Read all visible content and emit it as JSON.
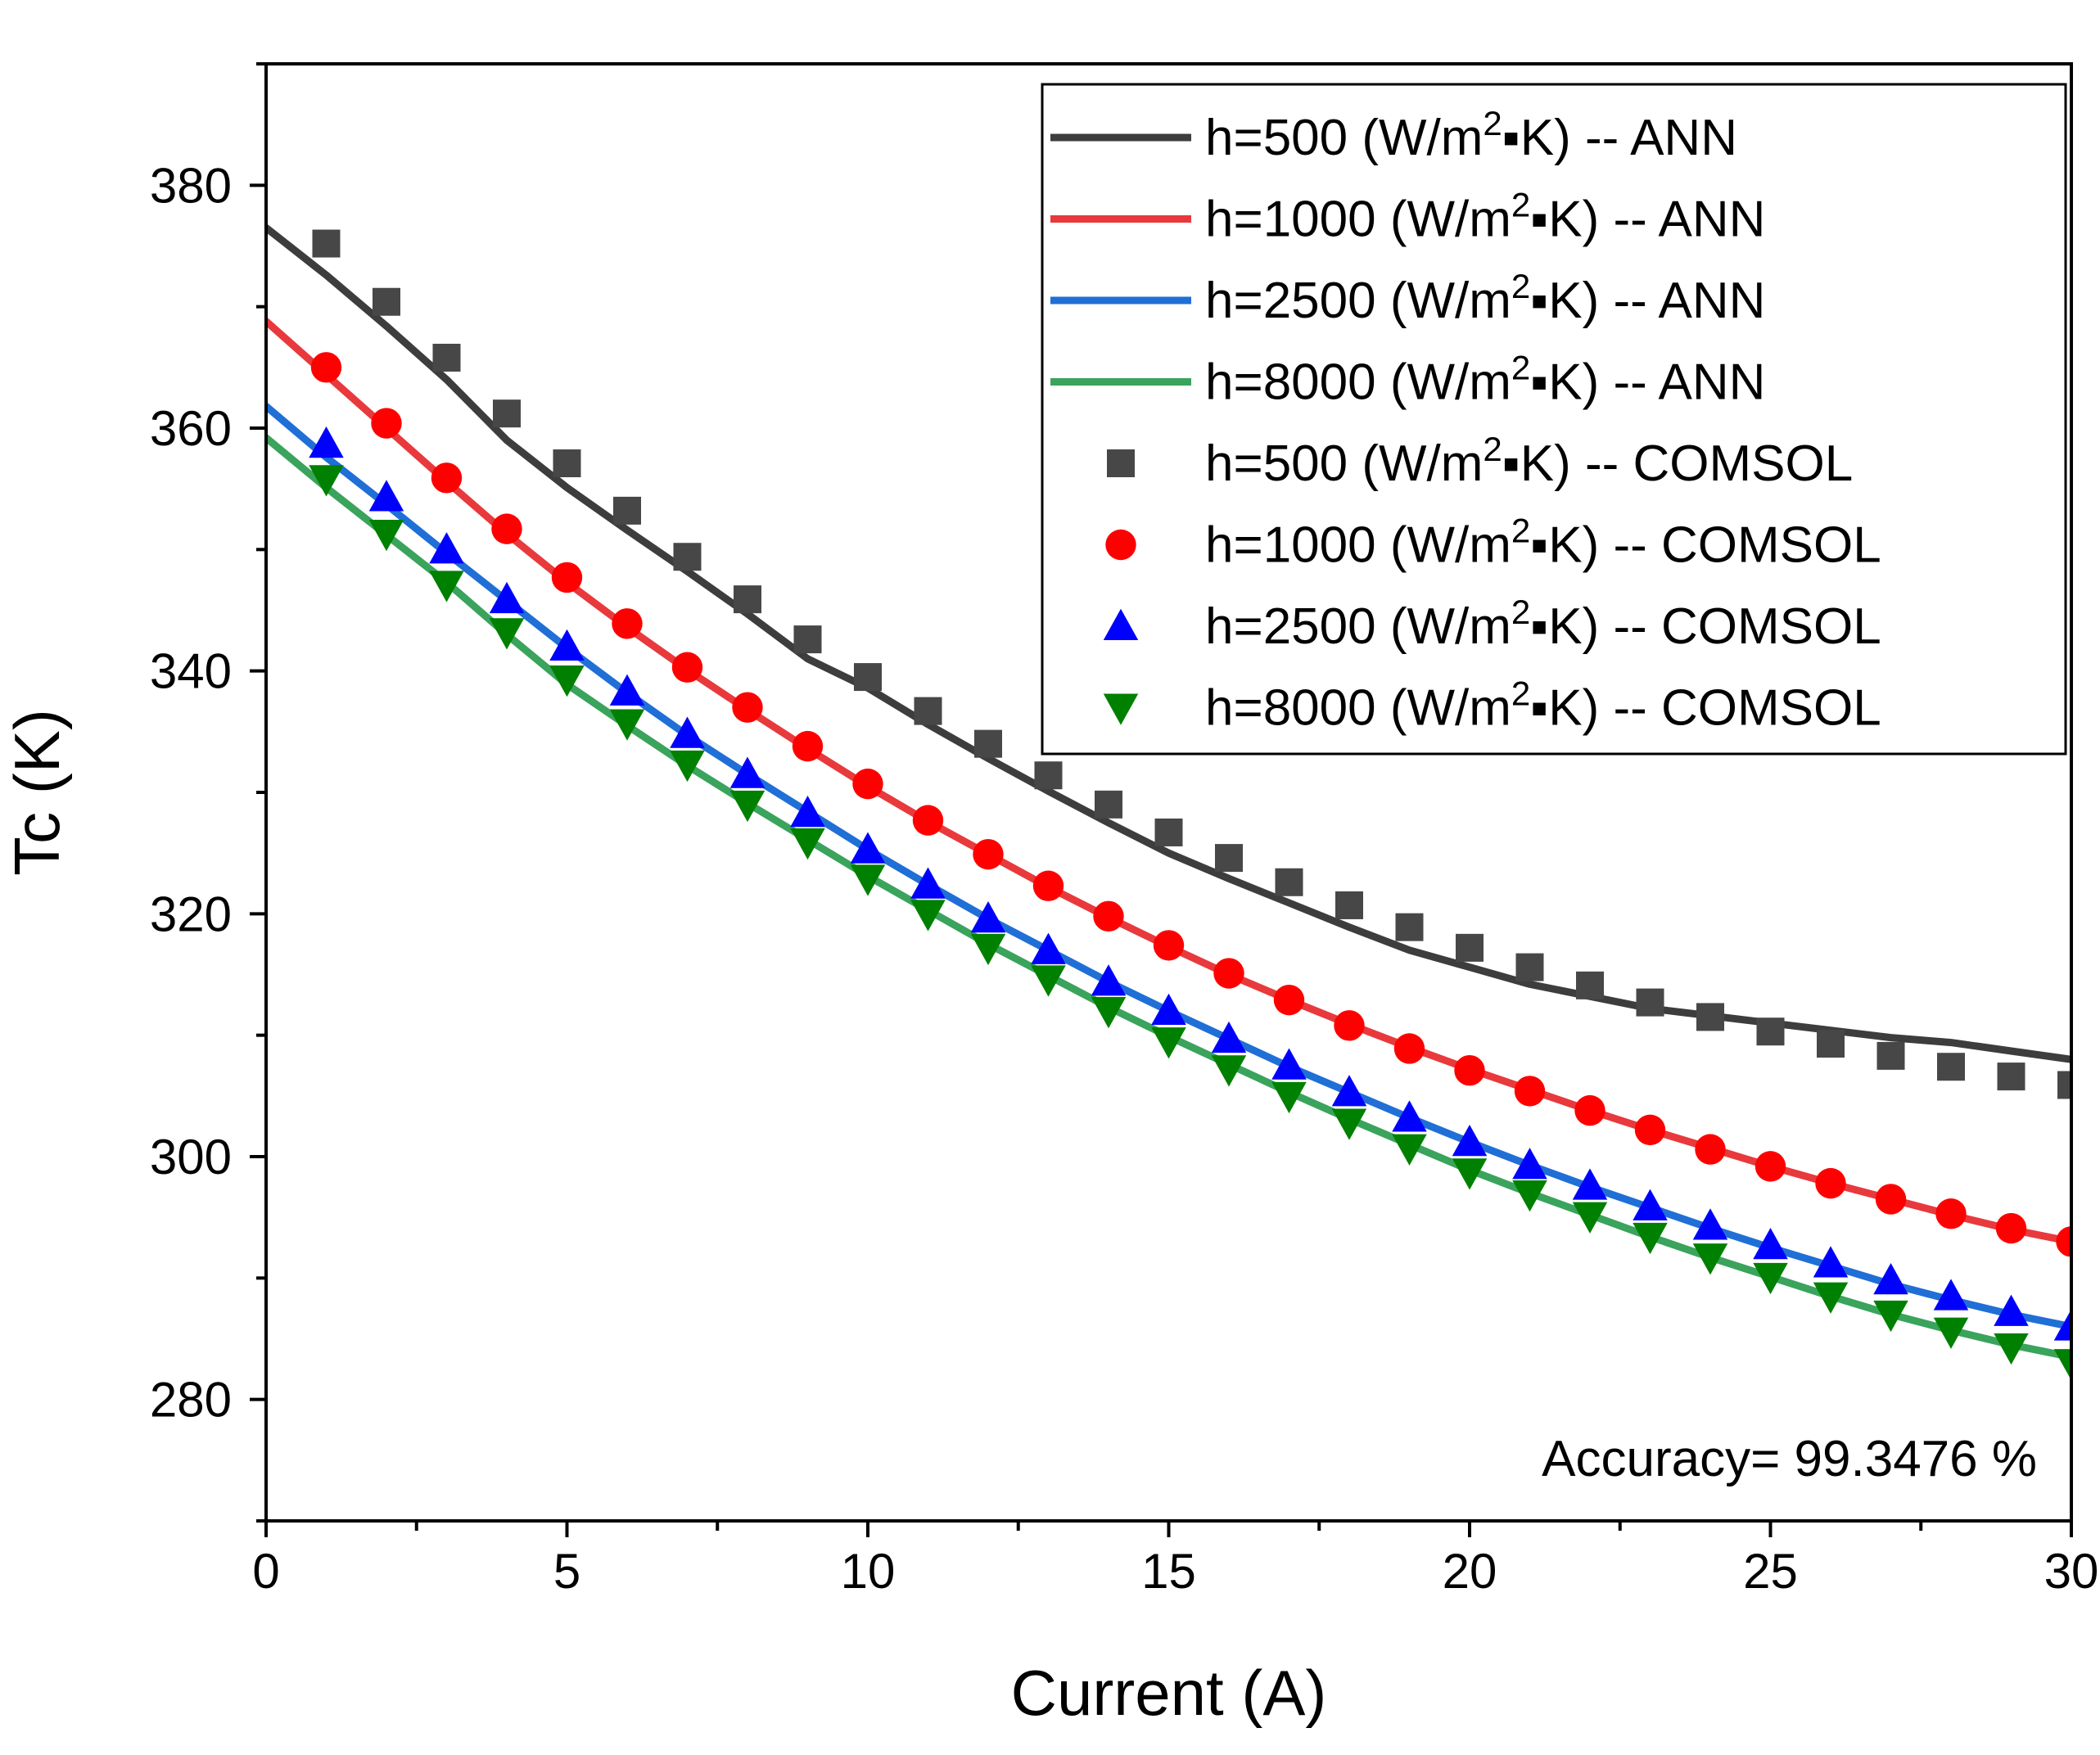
{
  "chart_data": {
    "type": "line",
    "xlabel": "Current (A)",
    "ylabel": "Tc (K)",
    "xlim": [
      0,
      30
    ],
    "ylim": [
      270,
      390
    ],
    "x_ticks": [
      0,
      5,
      10,
      15,
      20,
      25,
      30
    ],
    "y_ticks": [
      280,
      300,
      320,
      340,
      360,
      380
    ],
    "x_minor_step": 2.5,
    "y_minor_step": 10,
    "grid": false,
    "legend_position": "top-right",
    "annotation": "Accuracy= 99.3476 %",
    "ann_series": [
      {
        "name": "h=500 (W/m",
        "name_tail": "▪K) -- ANN",
        "superscript": "2",
        "color": "#3d3d3d",
        "x": [
          0,
          1,
          2,
          3,
          4,
          5,
          6,
          7,
          8,
          9,
          10,
          11,
          12,
          13,
          14,
          15,
          16,
          17,
          18,
          19,
          20,
          21,
          22,
          23,
          24,
          25,
          26,
          27,
          28,
          29,
          30
        ],
        "y": [
          376.5,
          372.6,
          368.4,
          364.0,
          359.0,
          355.1,
          351.6,
          348.2,
          344.7,
          341.0,
          338.6,
          335.6,
          332.8,
          330.1,
          327.5,
          325.0,
          322.9,
          320.9,
          318.9,
          317.0,
          315.6,
          314.2,
          313.2,
          312.2,
          311.6,
          311.0,
          310.4,
          309.8,
          309.4,
          308.7,
          308.0
        ]
      },
      {
        "name": "h=1000 (W/m",
        "name_tail": "▪K) -- ANN",
        "superscript": "2",
        "color": "#e8393c",
        "x": [
          0,
          1,
          2,
          3,
          4,
          5,
          6,
          7,
          8,
          9,
          10,
          11,
          12,
          13,
          14,
          15,
          16,
          17,
          18,
          19,
          20,
          21,
          22,
          23,
          24,
          25,
          26,
          27,
          28,
          29,
          30
        ],
        "y": [
          368.8,
          364.4,
          360.0,
          355.6,
          351.3,
          347.3,
          343.6,
          340.1,
          336.8,
          333.6,
          330.5,
          327.6,
          324.9,
          322.2,
          319.7,
          317.3,
          315.0,
          312.9,
          310.9,
          309.0,
          307.2,
          305.5,
          303.8,
          302.2,
          300.7,
          299.2,
          297.8,
          296.5,
          295.2,
          294.0,
          293.0
        ]
      },
      {
        "name": "h=2500 (W/m",
        "name_tail": "▪K) -- ANN",
        "superscript": "2",
        "color": "#1f6fd6",
        "x": [
          0,
          1,
          2,
          3,
          4,
          5,
          6,
          7,
          8,
          9,
          10,
          11,
          12,
          13,
          14,
          15,
          16,
          17,
          18,
          19,
          20,
          21,
          22,
          23,
          24,
          25,
          26,
          27,
          28,
          29,
          30
        ],
        "y": [
          361.8,
          357.6,
          353.7,
          349.7,
          345.8,
          341.9,
          338.2,
          334.7,
          331.5,
          328.4,
          325.3,
          322.4,
          319.6,
          317.0,
          314.4,
          312.0,
          309.7,
          307.4,
          305.3,
          303.2,
          301.2,
          299.3,
          297.5,
          295.8,
          294.1,
          292.5,
          291.0,
          289.5,
          288.2,
          287.0,
          286.0
        ]
      },
      {
        "name": "h=8000 (W/m",
        "name_tail": "▪K) -- ANN",
        "superscript": "2",
        "color": "#3aa35c",
        "x": [
          0,
          1,
          2,
          3,
          4,
          5,
          6,
          7,
          8,
          9,
          10,
          11,
          12,
          13,
          14,
          15,
          16,
          17,
          18,
          19,
          20,
          21,
          22,
          23,
          24,
          25,
          26,
          27,
          28,
          29,
          30
        ],
        "y": [
          359.2,
          355.1,
          351.2,
          347.3,
          343.0,
          338.9,
          335.5,
          332.2,
          329.1,
          326.1,
          323.1,
          320.3,
          317.5,
          314.9,
          312.3,
          309.9,
          307.6,
          305.3,
          303.1,
          301.0,
          298.9,
          297.0,
          295.2,
          293.4,
          291.7,
          290.1,
          288.5,
          287.0,
          285.7,
          284.5,
          283.5
        ]
      }
    ],
    "comsol_series": [
      {
        "name": "h=500 (W/m",
        "name_tail": "▪K) -- COMSOL",
        "superscript": "2",
        "color": "#474747",
        "marker": "square",
        "x": [
          1,
          2,
          3,
          4,
          5,
          6,
          7,
          8,
          9,
          10,
          11,
          12,
          13,
          14,
          15,
          16,
          17,
          18,
          19,
          20,
          21,
          22,
          23,
          24,
          25,
          26,
          27,
          28,
          29,
          30
        ],
        "y": [
          375.2,
          370.4,
          365.8,
          361.2,
          357.1,
          353.2,
          349.4,
          345.9,
          342.6,
          339.5,
          336.7,
          334.0,
          331.4,
          329.0,
          326.7,
          324.6,
          322.6,
          320.7,
          318.9,
          317.2,
          315.6,
          314.1,
          312.7,
          311.5,
          310.3,
          309.3,
          308.3,
          307.4,
          306.6,
          305.9
        ]
      },
      {
        "name": "h=1000 (W/m",
        "name_tail": "▪K) -- COMSOL",
        "superscript": "2",
        "color": "#ff0000",
        "marker": "circle",
        "x": [
          1,
          2,
          3,
          4,
          5,
          6,
          7,
          8,
          9,
          10,
          11,
          12,
          13,
          14,
          15,
          16,
          17,
          18,
          19,
          20,
          21,
          22,
          23,
          24,
          25,
          26,
          27,
          28,
          29,
          30
        ],
        "y": [
          365.0,
          360.4,
          355.9,
          351.7,
          347.7,
          343.9,
          340.3,
          337.0,
          333.8,
          330.7,
          327.7,
          324.9,
          322.3,
          319.8,
          317.4,
          315.1,
          312.9,
          310.8,
          308.9,
          307.1,
          305.4,
          303.8,
          302.2,
          300.6,
          299.2,
          297.8,
          296.5,
          295.3,
          294.1,
          293.0
        ]
      },
      {
        "name": "h=2500 (W/m",
        "name_tail": "▪K) -- COMSOL",
        "superscript": "2",
        "color": "#0000ff",
        "marker": "triangle-up",
        "x": [
          1,
          2,
          3,
          4,
          5,
          6,
          7,
          8,
          9,
          10,
          11,
          12,
          13,
          14,
          15,
          16,
          17,
          18,
          19,
          20,
          21,
          22,
          23,
          24,
          25,
          26,
          27,
          28,
          29,
          30
        ],
        "y": [
          358.7,
          354.3,
          350.0,
          345.9,
          342.0,
          338.3,
          334.8,
          331.5,
          328.3,
          325.3,
          322.4,
          319.6,
          317.0,
          314.4,
          312.0,
          309.7,
          307.5,
          305.3,
          303.2,
          301.2,
          299.3,
          297.6,
          295.9,
          294.3,
          292.7,
          291.2,
          289.8,
          288.5,
          287.2,
          286.0
        ]
      },
      {
        "name": "h=8000 (W/m",
        "name_tail": "▪K) -- COMSOL",
        "superscript": "2",
        "color": "#008000",
        "marker": "triangle-down",
        "x": [
          1,
          2,
          3,
          4,
          5,
          6,
          7,
          8,
          9,
          10,
          11,
          12,
          13,
          14,
          15,
          16,
          17,
          18,
          19,
          20,
          21,
          22,
          23,
          24,
          25,
          26,
          27,
          28,
          29,
          30
        ],
        "y": [
          355.8,
          351.3,
          347.1,
          343.2,
          339.3,
          335.7,
          332.3,
          329.0,
          325.9,
          322.9,
          320.0,
          317.2,
          314.6,
          312.0,
          309.5,
          307.2,
          305.0,
          302.8,
          300.7,
          298.7,
          296.9,
          295.1,
          293.4,
          291.7,
          290.1,
          288.5,
          287.0,
          285.6,
          284.3,
          283.0
        ]
      }
    ]
  }
}
